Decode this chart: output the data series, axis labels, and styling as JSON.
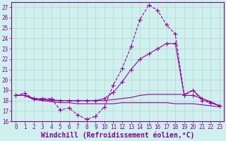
{
  "xlabel": "Windchill (Refroidissement éolien,°C)",
  "background_color": "#cff0ee",
  "grid_color": "#b0d8cc",
  "ylim": [
    16,
    27.5
  ],
  "xlim": [
    -0.5,
    23.5
  ],
  "yticks": [
    16,
    17,
    18,
    19,
    20,
    21,
    22,
    23,
    24,
    25,
    26,
    27
  ],
  "xticks": [
    0,
    1,
    2,
    3,
    4,
    5,
    6,
    7,
    8,
    9,
    10,
    11,
    12,
    13,
    14,
    15,
    16,
    17,
    18,
    19,
    20,
    21,
    22,
    23
  ],
  "line_color": "#990099",
  "lines": [
    {
      "x": [
        0,
        1,
        2,
        3,
        4,
        5,
        6,
        7,
        8,
        9,
        10,
        11,
        12,
        13,
        14,
        15,
        16,
        17,
        18,
        19,
        20,
        21,
        22,
        23
      ],
      "y": [
        18.5,
        18.7,
        18.2,
        18.2,
        18.2,
        17.1,
        17.3,
        16.6,
        16.2,
        16.5,
        17.4,
        19.5,
        21.1,
        23.2,
        25.8,
        27.2,
        26.7,
        25.3,
        24.4,
        18.5,
        19.0,
        18.0,
        17.8,
        17.5
      ],
      "marker": "+",
      "linestyle": "--",
      "linewidth": 0.8,
      "markersize": 4
    },
    {
      "x": [
        0,
        1,
        2,
        3,
        4,
        5,
        6,
        7,
        8,
        9,
        10,
        11,
        12,
        13,
        14,
        15,
        16,
        17,
        18,
        19,
        20,
        21,
        22,
        23
      ],
      "y": [
        18.5,
        18.5,
        18.2,
        18.1,
        18.1,
        18.0,
        18.0,
        18.0,
        18.0,
        18.0,
        18.2,
        18.8,
        19.8,
        21.0,
        22.0,
        22.5,
        23.0,
        23.5,
        23.5,
        18.5,
        18.5,
        18.2,
        17.8,
        17.5
      ],
      "marker": "+",
      "linestyle": "-",
      "linewidth": 0.8,
      "markersize": 4
    },
    {
      "x": [
        0,
        1,
        2,
        3,
        4,
        5,
        6,
        7,
        8,
        9,
        10,
        11,
        12,
        13,
        14,
        15,
        16,
        17,
        18,
        19,
        20,
        21,
        22,
        23
      ],
      "y": [
        18.5,
        18.5,
        18.2,
        18.1,
        18.0,
        18.0,
        18.0,
        18.0,
        18.0,
        18.0,
        18.0,
        18.1,
        18.2,
        18.3,
        18.5,
        18.6,
        18.6,
        18.6,
        18.6,
        18.6,
        19.0,
        18.2,
        17.9,
        17.5
      ],
      "marker": null,
      "linestyle": "-",
      "linewidth": 0.8,
      "markersize": 0
    },
    {
      "x": [
        0,
        1,
        2,
        3,
        4,
        5,
        6,
        7,
        8,
        9,
        10,
        11,
        12,
        13,
        14,
        15,
        16,
        17,
        18,
        19,
        20,
        21,
        22,
        23
      ],
      "y": [
        18.5,
        18.5,
        18.1,
        18.0,
        17.9,
        17.8,
        17.8,
        17.7,
        17.7,
        17.7,
        17.7,
        17.7,
        17.8,
        17.8,
        17.8,
        17.8,
        17.8,
        17.8,
        17.7,
        17.7,
        17.7,
        17.6,
        17.5,
        17.4
      ],
      "marker": null,
      "linestyle": "-",
      "linewidth": 0.8,
      "markersize": 0
    }
  ],
  "font_color": "#880088",
  "tick_fontsize": 5.5,
  "xlabel_fontsize": 7.0,
  "spine_linewidth": 0.8
}
